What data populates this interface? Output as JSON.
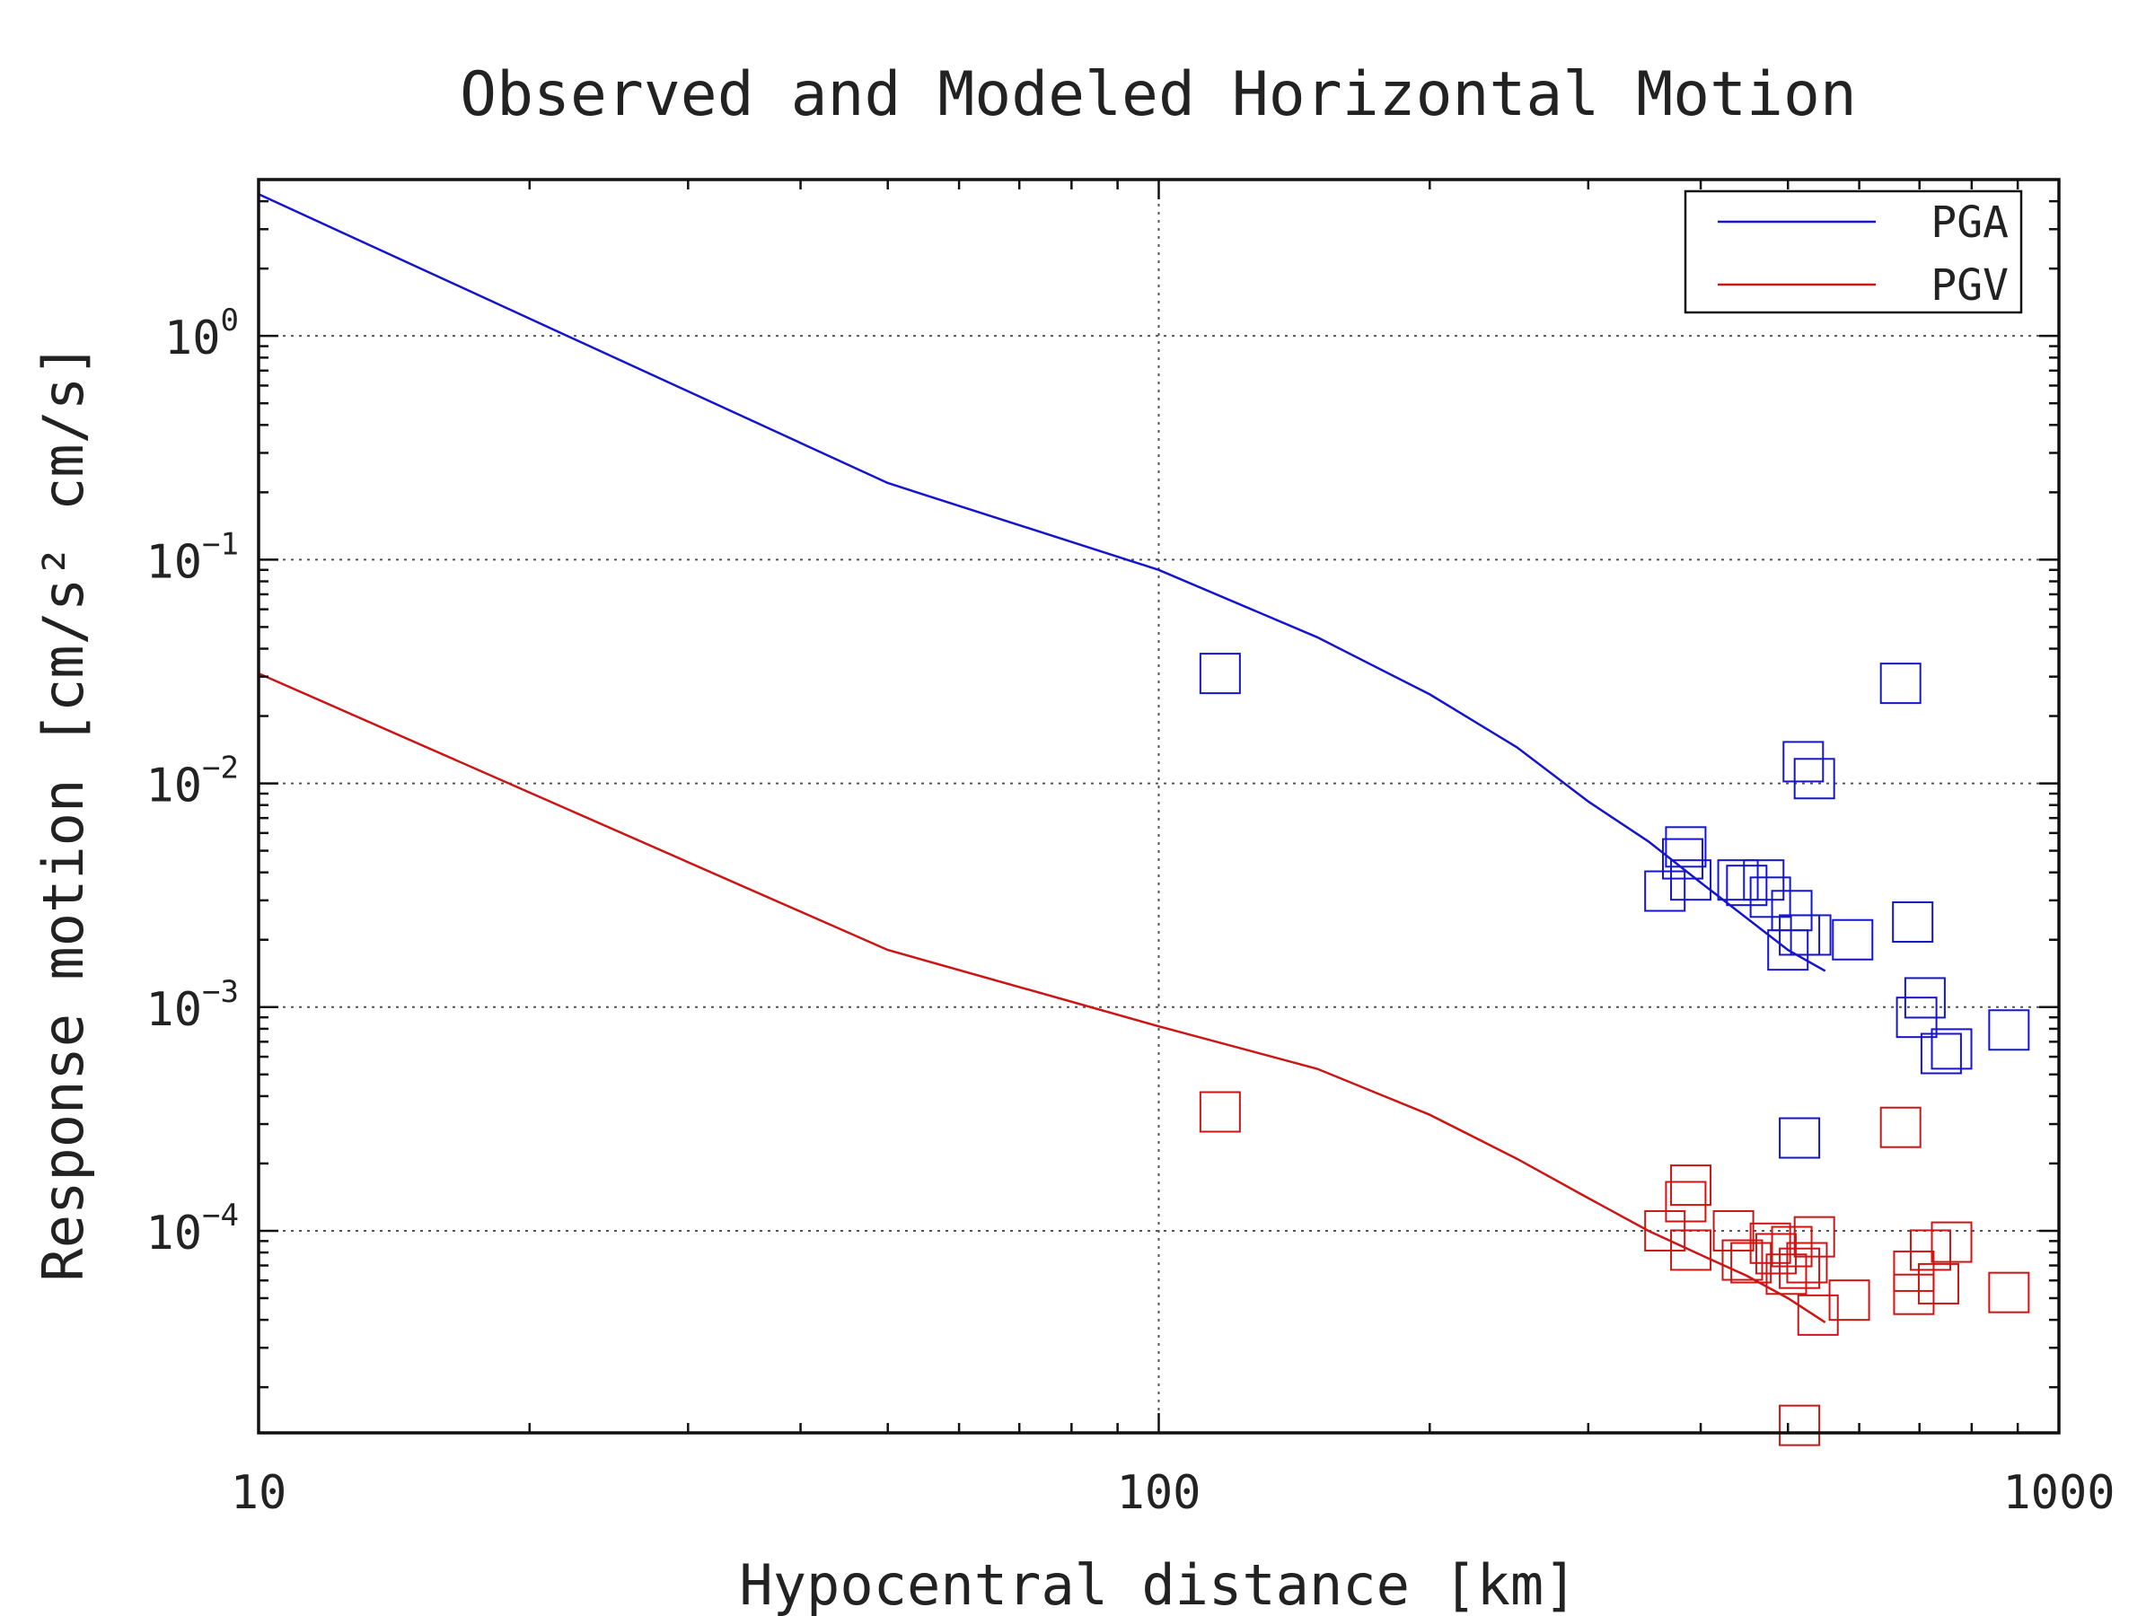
{
  "chart_data": {
    "type": "scatter",
    "title": "Observed and Modeled Horizontal Motion",
    "xlabel": "Hypocentral distance [km]",
    "ylabel": "Response motion [cm/s²  cm/s]",
    "xscale": "log",
    "yscale": "log",
    "xlim": [
      10,
      1000
    ],
    "ylim": [
      1.25e-05,
      5
    ],
    "x_ticks": [
      {
        "value": 10,
        "label": "10"
      },
      {
        "value": 100,
        "label": "100"
      },
      {
        "value": 1000,
        "label": "1000"
      }
    ],
    "y_ticks": [
      {
        "value": 1,
        "base": "10",
        "exp": "0"
      },
      {
        "value": 0.1,
        "base": "10",
        "exp": "−1"
      },
      {
        "value": 0.01,
        "base": "10",
        "exp": "−2"
      },
      {
        "value": 0.001,
        "base": "10",
        "exp": "−3"
      },
      {
        "value": 0.0001,
        "base": "10",
        "exp": "−4"
      }
    ],
    "grid": true,
    "legend_position": "top-right",
    "series": [
      {
        "name": "PGA",
        "color": "#1515cc",
        "kind": "line",
        "points": [
          [
            10,
            4.3
          ],
          [
            50,
            0.22
          ],
          [
            100,
            0.09
          ],
          [
            150,
            0.045
          ],
          [
            200,
            0.025
          ],
          [
            250,
            0.0145
          ],
          [
            300,
            0.0083
          ],
          [
            350,
            0.0055
          ],
          [
            400,
            0.0036
          ],
          [
            450,
            0.0025
          ],
          [
            500,
            0.0018
          ],
          [
            550,
            0.00145
          ]
        ]
      },
      {
        "name": "PGV",
        "color": "#cc1515",
        "kind": "line",
        "points": [
          [
            10,
            0.031
          ],
          [
            50,
            0.0018
          ],
          [
            100,
            0.00082
          ],
          [
            150,
            0.00053
          ],
          [
            200,
            0.00033
          ],
          [
            250,
            0.00021
          ],
          [
            300,
            0.00014
          ],
          [
            350,
            0.0001
          ],
          [
            400,
            7.8e-05
          ],
          [
            450,
            6.3e-05
          ],
          [
            500,
            5e-05
          ],
          [
            550,
            3.9e-05
          ]
        ]
      },
      {
        "color": "#1515cc",
        "kind": "markers",
        "points": [
          [
            117,
            0.031
          ],
          [
            667,
            0.028
          ],
          [
            520,
            0.0125
          ],
          [
            535,
            0.0105
          ],
          [
            385,
            0.0052
          ],
          [
            382,
            0.0046
          ],
          [
            390,
            0.0037
          ],
          [
            365,
            0.0033
          ],
          [
            440,
            0.0037
          ],
          [
            450,
            0.0035
          ],
          [
            470,
            0.0037
          ],
          [
            478,
            0.0031
          ],
          [
            505,
            0.0027
          ],
          [
            515,
            0.0021
          ],
          [
            530,
            0.0021
          ],
          [
            500,
            0.0018
          ],
          [
            590,
            0.002
          ],
          [
            688,
            0.0024
          ],
          [
            710,
            0.0011
          ],
          [
            695,
            0.0009
          ],
          [
            740,
            0.00062
          ],
          [
            760,
            0.00065
          ],
          [
            880,
            0.00079
          ],
          [
            515,
            0.00026
          ]
        ]
      },
      {
        "color": "#cc1515",
        "kind": "markers",
        "points": [
          [
            117,
            0.00034
          ],
          [
            667,
            0.00029
          ],
          [
            390,
            0.00016
          ],
          [
            385,
            0.000135
          ],
          [
            365,
            0.0001
          ],
          [
            390,
            8.2e-05
          ],
          [
            435,
            0.0001
          ],
          [
            445,
            7.4e-05
          ],
          [
            455,
            7.2e-05
          ],
          [
            478,
            8.8e-05
          ],
          [
            485,
            7.9e-05
          ],
          [
            498,
            6.4e-05
          ],
          [
            505,
            8.5e-05
          ],
          [
            515,
            6.8e-05
          ],
          [
            525,
            7.2e-05
          ],
          [
            535,
            9.4e-05
          ],
          [
            540,
            4.2e-05
          ],
          [
            585,
            4.9e-05
          ],
          [
            690,
            6.6e-05
          ],
          [
            690,
            5.2e-05
          ],
          [
            720,
            8.2e-05
          ],
          [
            735,
            5.8e-05
          ],
          [
            760,
            8.9e-05
          ],
          [
            880,
            5.3e-05
          ],
          [
            515,
            1.35e-05
          ]
        ]
      }
    ]
  }
}
